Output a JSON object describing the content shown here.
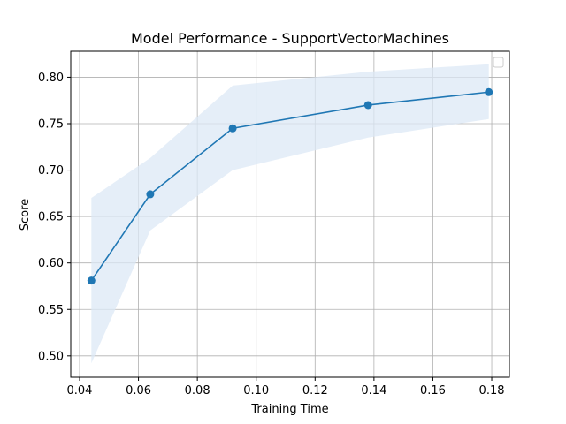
{
  "chart_data": {
    "type": "line",
    "title": "Model Performance - SupportVectorMachines",
    "xlabel": "Training Time",
    "ylabel": "Score",
    "xlim": [
      0.037,
      0.186
    ],
    "ylim": [
      0.477,
      0.828
    ],
    "xticks": [
      0.04,
      0.06,
      0.08,
      0.1,
      0.12,
      0.14,
      0.16,
      0.18
    ],
    "xtick_labels": [
      "0.04",
      "0.06",
      "0.08",
      "0.10",
      "0.12",
      "0.14",
      "0.16",
      "0.18"
    ],
    "yticks": [
      0.5,
      0.55,
      0.6,
      0.65,
      0.7,
      0.75,
      0.8
    ],
    "ytick_labels": [
      "0.50",
      "0.55",
      "0.60",
      "0.65",
      "0.70",
      "0.75",
      "0.80"
    ],
    "grid": true,
    "legend": "top-right (empty)",
    "series": [
      {
        "x": [
          0.044,
          0.064,
          0.092,
          0.138,
          0.179
        ],
        "y": [
          0.581,
          0.674,
          0.745,
          0.77,
          0.784
        ],
        "lower": [
          0.492,
          0.635,
          0.7,
          0.735,
          0.755
        ],
        "upper": [
          0.67,
          0.713,
          0.791,
          0.806,
          0.814
        ],
        "color": "#1f77b4",
        "band_color": "#dce8f5"
      }
    ]
  }
}
